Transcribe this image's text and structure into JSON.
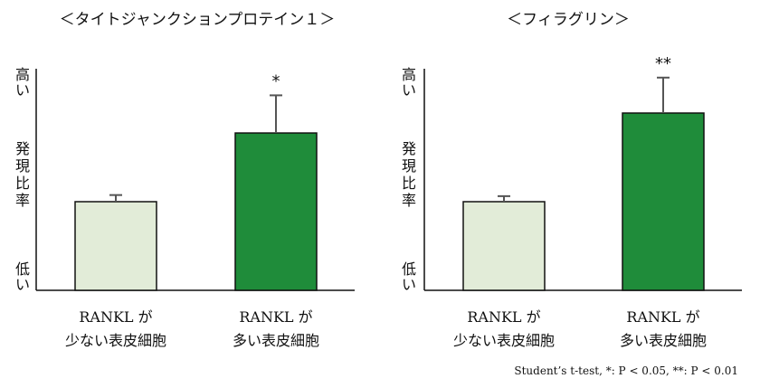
{
  "colors": {
    "low_fill": "#e2ecd8",
    "high_fill": "#1f8c3a",
    "bar_stroke": "#111111",
    "error_bar": "#555555",
    "axis": "#111111"
  },
  "footnote": "Student’s t-test, *: P < 0.05, **: P < 0.01",
  "chart_data": [
    {
      "type": "bar",
      "title": "＜タイトジャンクションプロテイン１＞",
      "ylabel_top": "高い",
      "ylabel_mid": "発現比率",
      "ylabel_bottom": "低い",
      "categories": [
        {
          "line1": "RANKL が",
          "line2": "少ない表皮細胞"
        },
        {
          "line1": "RANKL が",
          "line2": "多い表皮細胞"
        }
      ],
      "values": [
        0.4,
        0.71
      ],
      "errors": [
        0.03,
        0.17
      ],
      "significance": [
        "",
        "*"
      ],
      "ylim": [
        0,
        1
      ]
    },
    {
      "type": "bar",
      "title": "＜フィラグリン＞",
      "ylabel_top": "高い",
      "ylabel_mid": "発現比率",
      "ylabel_bottom": "低い",
      "categories": [
        {
          "line1": "RANKL が",
          "line2": "少ない表皮細胞"
        },
        {
          "line1": "RANKL が",
          "line2": "多い表皮細胞"
        }
      ],
      "values": [
        0.4,
        0.8
      ],
      "errors": [
        0.025,
        0.16
      ],
      "significance": [
        "",
        "**"
      ],
      "ylim": [
        0,
        1
      ]
    }
  ]
}
